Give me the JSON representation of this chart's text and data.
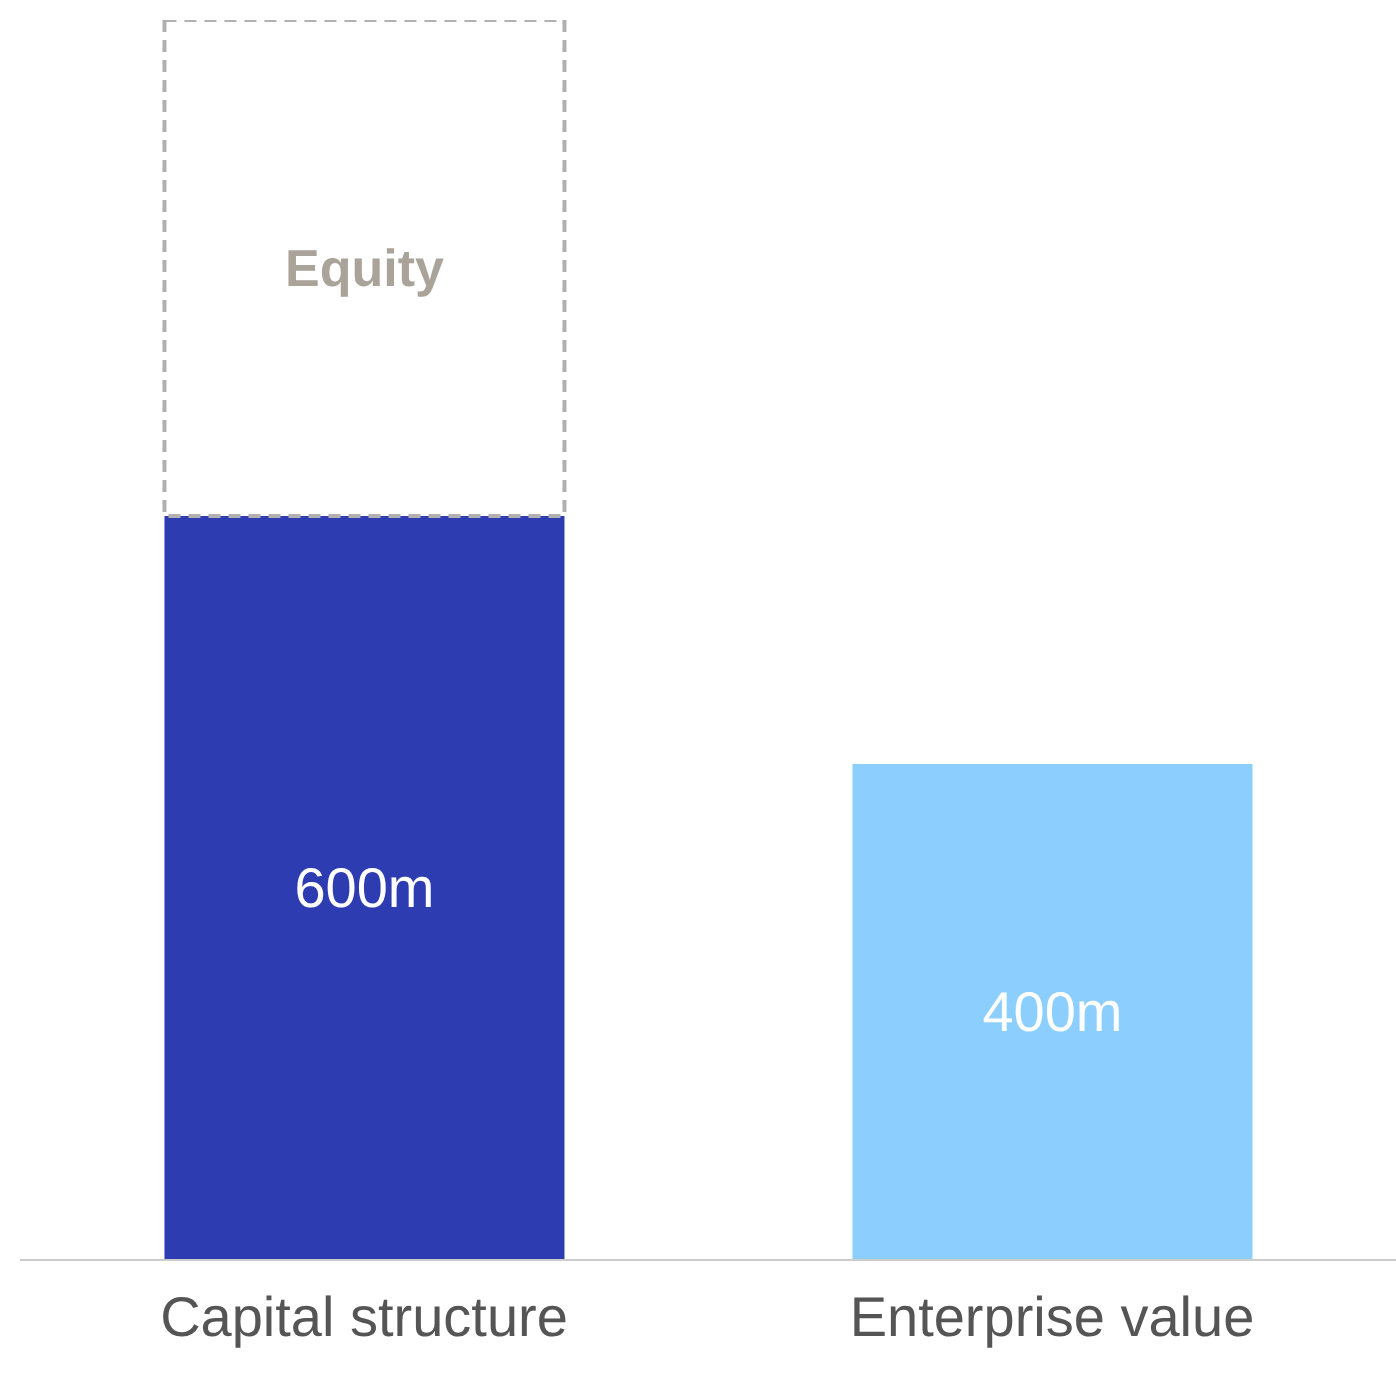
{
  "chart_data": {
    "type": "bar",
    "stacked": true,
    "categories": [
      "Capital structure",
      "Enterprise value"
    ],
    "ylim": [
      0,
      1000
    ],
    "series": [
      {
        "values": [
          600,
          400
        ],
        "colors": [
          "#2e3cb1",
          "#8ccfff"
        ],
        "value_labels": [
          "600m",
          "400m"
        ]
      },
      {
        "name": "Equity",
        "values": [
          400,
          null
        ],
        "color": "#ffffff",
        "line_style": "dashed"
      }
    ]
  }
}
